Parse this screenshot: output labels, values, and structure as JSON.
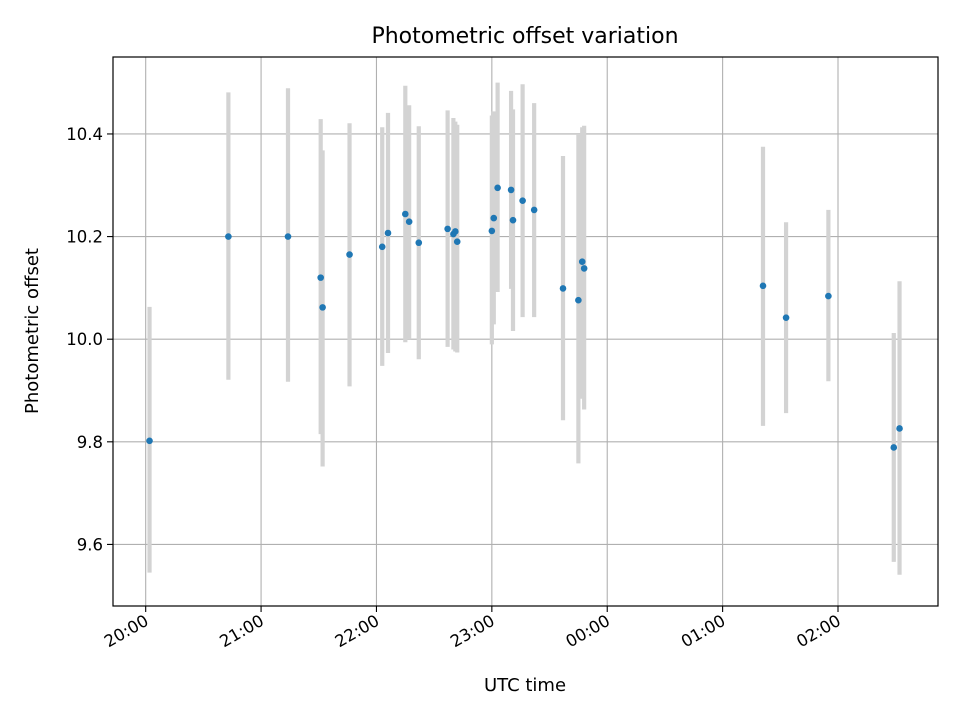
{
  "chart_data": {
    "type": "scatter",
    "title": "Photometric offset variation",
    "xlabel": "UTC time",
    "ylabel": "Photometric offset",
    "xaxis": {
      "format": "time",
      "range": [
        "19:43",
        "02:52"
      ],
      "ticks": [
        "20:00",
        "21:00",
        "22:00",
        "23:00",
        "00:00",
        "01:00",
        "02:00"
      ],
      "tick_label_rotation": "30deg"
    },
    "yaxis": {
      "range": [
        9.48,
        10.55
      ],
      "ticks": [
        9.6,
        9.8,
        10.0,
        10.2,
        10.4
      ],
      "tick_labels": [
        "9.6",
        "9.8",
        "10.0",
        "10.2",
        "10.4"
      ]
    },
    "grid": true,
    "colors": {
      "points": "#1f77b4",
      "errorbars": "#d3d3d3"
    },
    "series": [
      {
        "points": [
          {
            "t": "20:02",
            "y": 9.802,
            "lo": 9.545,
            "hi": 10.063
          },
          {
            "t": "20:43",
            "y": 10.2,
            "lo": 9.921,
            "hi": 10.481
          },
          {
            "t": "21:14",
            "y": 10.2,
            "lo": 9.917,
            "hi": 10.489
          },
          {
            "t": "21:31",
            "y": 10.12,
            "lo": 9.815,
            "hi": 10.429
          },
          {
            "t": "21:32",
            "y": 10.062,
            "lo": 9.752,
            "hi": 10.368
          },
          {
            "t": "21:46",
            "y": 10.165,
            "lo": 9.908,
            "hi": 10.421
          },
          {
            "t": "22:03",
            "y": 10.18,
            "lo": 9.948,
            "hi": 10.413
          },
          {
            "t": "22:06",
            "y": 10.207,
            "lo": 9.973,
            "hi": 10.441
          },
          {
            "t": "22:15",
            "y": 10.244,
            "lo": 9.994,
            "hi": 10.494
          },
          {
            "t": "22:17",
            "y": 10.229,
            "lo": 10.0,
            "hi": 10.456
          },
          {
            "t": "22:22",
            "y": 10.188,
            "lo": 9.961,
            "hi": 10.415
          },
          {
            "t": "22:37",
            "y": 10.215,
            "lo": 9.985,
            "hi": 10.446
          },
          {
            "t": "22:40",
            "y": 10.205,
            "lo": 9.98,
            "hi": 10.431
          },
          {
            "t": "22:41",
            "y": 10.21,
            "lo": 9.976,
            "hi": 10.424
          },
          {
            "t": "22:42",
            "y": 10.19,
            "lo": 9.974,
            "hi": 10.418
          },
          {
            "t": "23:00",
            "y": 10.211,
            "lo": 9.99,
            "hi": 10.436
          },
          {
            "t": "23:01",
            "y": 10.236,
            "lo": 10.029,
            "hi": 10.444
          },
          {
            "t": "23:03",
            "y": 10.295,
            "lo": 10.092,
            "hi": 10.5
          },
          {
            "t": "23:10",
            "y": 10.291,
            "lo": 10.098,
            "hi": 10.484
          },
          {
            "t": "23:11",
            "y": 10.232,
            "lo": 10.016,
            "hi": 10.448
          },
          {
            "t": "23:16",
            "y": 10.27,
            "lo": 10.043,
            "hi": 10.497
          },
          {
            "t": "23:22",
            "y": 10.252,
            "lo": 10.043,
            "hi": 10.46
          },
          {
            "t": "23:37",
            "y": 10.099,
            "lo": 9.842,
            "hi": 10.357
          },
          {
            "t": "23:45",
            "y": 10.076,
            "lo": 9.758,
            "hi": 10.4
          },
          {
            "t": "23:47",
            "y": 10.151,
            "lo": 9.884,
            "hi": 10.413
          },
          {
            "t": "23:48",
            "y": 10.138,
            "lo": 9.863,
            "hi": 10.416
          },
          {
            "t": "01:21",
            "y": 10.104,
            "lo": 9.831,
            "hi": 10.375
          },
          {
            "t": "01:33",
            "y": 10.042,
            "lo": 9.856,
            "hi": 10.228
          },
          {
            "t": "01:55",
            "y": 10.084,
            "lo": 9.918,
            "hi": 10.252
          },
          {
            "t": "02:29",
            "y": 9.789,
            "lo": 9.566,
            "hi": 10.012
          },
          {
            "t": "02:32",
            "y": 9.826,
            "lo": 9.541,
            "hi": 10.113
          }
        ]
      }
    ]
  }
}
